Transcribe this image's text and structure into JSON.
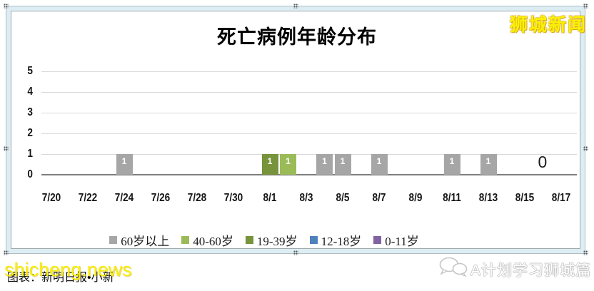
{
  "chart_data": {
    "type": "bar",
    "title": "死亡病例年龄分布",
    "xlabel": "",
    "ylabel": "",
    "ylim": [
      0,
      5
    ],
    "y_ticks": [
      0,
      1,
      2,
      3,
      4,
      5
    ],
    "grid": true,
    "legend_position": "bottom",
    "x_tick_labels": [
      "7/20",
      "7/22",
      "7/24",
      "7/26",
      "7/28",
      "7/30",
      "8/1",
      "8/3",
      "8/5",
      "8/7",
      "8/9",
      "8/11",
      "8/13",
      "8/15",
      "8/17"
    ],
    "bars": [
      {
        "date": "7/24",
        "day_index": 4,
        "value": 1,
        "series": "60岁以上"
      },
      {
        "date": "8/1",
        "day_index": 12,
        "value": 1,
        "series": "19-39岁"
      },
      {
        "date": "8/2",
        "day_index": 13,
        "value": 1,
        "series": "40-60岁"
      },
      {
        "date": "8/4",
        "day_index": 15,
        "value": 1,
        "series": "60岁以上"
      },
      {
        "date": "8/5",
        "day_index": 16,
        "value": 1,
        "series": "60岁以上"
      },
      {
        "date": "8/7",
        "day_index": 18,
        "value": 1,
        "series": "60岁以上"
      },
      {
        "date": "8/11",
        "day_index": 22,
        "value": 1,
        "series": "60岁以上"
      },
      {
        "date": "8/13",
        "day_index": 24,
        "value": 1,
        "series": "60岁以上"
      },
      {
        "date": "8/16",
        "day_index": 27,
        "value": 0,
        "label": "0"
      }
    ],
    "legend": [
      {
        "label": "60岁以上",
        "color": "#a6a6a6"
      },
      {
        "label": "40-60岁",
        "color": "#9bbb59"
      },
      {
        "label": "19-39岁",
        "color": "#77933c"
      },
      {
        "label": "12-18岁",
        "color": "#4f81bd"
      },
      {
        "label": "0-11岁",
        "color": "#8064a2"
      }
    ],
    "colors": {
      "grid": "#d9d9d9",
      "axis": "#7f7f7f",
      "bar_value_label": "#ffffff"
    }
  },
  "watermarks": {
    "top_right_brand": "狮城新闻",
    "bottom_left_site": "shicheng.news",
    "source_caption_obscured": "图表：新明日报•小新",
    "bottom_right_account": "A计划学习狮城篇",
    "yellow": "#f7ee08"
  }
}
